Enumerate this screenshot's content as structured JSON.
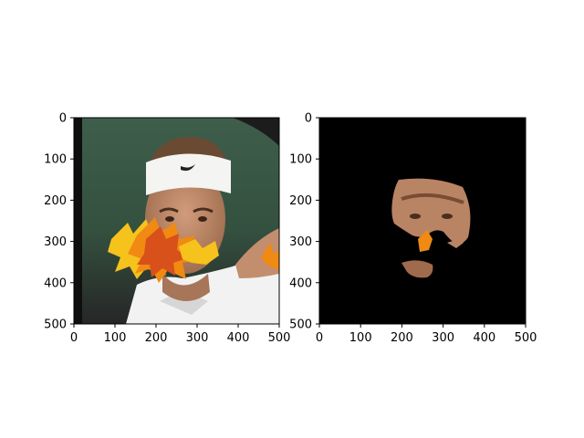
{
  "chart_data": [
    {
      "type": "image",
      "description_visible": "photo",
      "x_ticks": [
        0,
        100,
        200,
        300,
        400,
        500
      ],
      "y_ticks": [
        0,
        100,
        200,
        300,
        400,
        500
      ],
      "xlim": [
        0,
        500
      ],
      "ylim": [
        500,
        0
      ],
      "colors": {
        "background_top": "#3b5a48",
        "background_bottom": "#2a2a2a",
        "left_post": "#0e0e0e",
        "skin": "#c28e6e",
        "skin_shadow": "#8e5e42",
        "hair": "#6a4a33",
        "headband": "#f4f4f2",
        "shirt": "#f2f2f2",
        "shirt_shadow": "#d6d6d6",
        "leaf_orange": "#f08a12",
        "leaf_yellow": "#f6c21c",
        "leaf_red": "#d8501a"
      }
    },
    {
      "type": "image",
      "description_visible": "mask",
      "x_ticks": [
        0,
        100,
        200,
        300,
        400,
        500
      ],
      "y_ticks": [
        0,
        100,
        200,
        300,
        400,
        500
      ],
      "xlim": [
        0,
        500
      ],
      "ylim": [
        500,
        0
      ],
      "colors": {
        "background": "#000000",
        "skin": "#b98464",
        "leaf_orange": "#f08a12"
      }
    }
  ]
}
